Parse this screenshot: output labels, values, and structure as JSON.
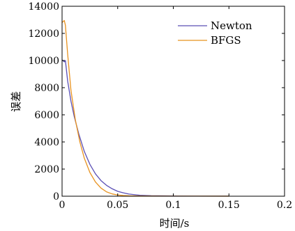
{
  "chart_data": {
    "type": "line",
    "title": "",
    "xlabel": "时间/s",
    "ylabel": "误差",
    "xlim": [
      0,
      0.2
    ],
    "ylim": [
      0,
      14000
    ],
    "xticks": [
      0,
      0.05,
      0.1,
      0.15,
      0.2
    ],
    "xtick_labels": [
      "0",
      "0.05",
      "0.1",
      "0.15",
      "0.2"
    ],
    "yticks": [
      0,
      2000,
      4000,
      6000,
      8000,
      10000,
      12000,
      14000
    ],
    "ytick_labels": [
      "0",
      "2000",
      "4000",
      "6000",
      "8000",
      "10000",
      "12000",
      "14000"
    ],
    "grid": false,
    "legend_position": "top-right",
    "series": [
      {
        "name": "Newton",
        "color": "#5a4fb5",
        "x": [
          0.0,
          0.002,
          0.003,
          0.005,
          0.008,
          0.011,
          0.015,
          0.02,
          0.025,
          0.03,
          0.035,
          0.04,
          0.045,
          0.05,
          0.055,
          0.06,
          0.07,
          0.08,
          0.1,
          0.12,
          0.15
        ],
        "y": [
          10050,
          9900,
          10000,
          8500,
          7000,
          5850,
          4600,
          3300,
          2350,
          1650,
          1150,
          800,
          550,
          360,
          250,
          160,
          70,
          35,
          15,
          8,
          5
        ]
      },
      {
        "name": "BFGS",
        "color": "#e8921f",
        "x": [
          0.0,
          0.002,
          0.003,
          0.005,
          0.008,
          0.012,
          0.016,
          0.02,
          0.025,
          0.03,
          0.035,
          0.04,
          0.045,
          0.05,
          0.055,
          0.06,
          0.07,
          0.08,
          0.1,
          0.12,
          0.15
        ],
        "y": [
          12800,
          12950,
          12600,
          10500,
          7800,
          5600,
          4000,
          2800,
          1750,
          1050,
          600,
          320,
          170,
          90,
          50,
          30,
          20,
          12,
          8,
          5,
          4
        ]
      }
    ]
  }
}
